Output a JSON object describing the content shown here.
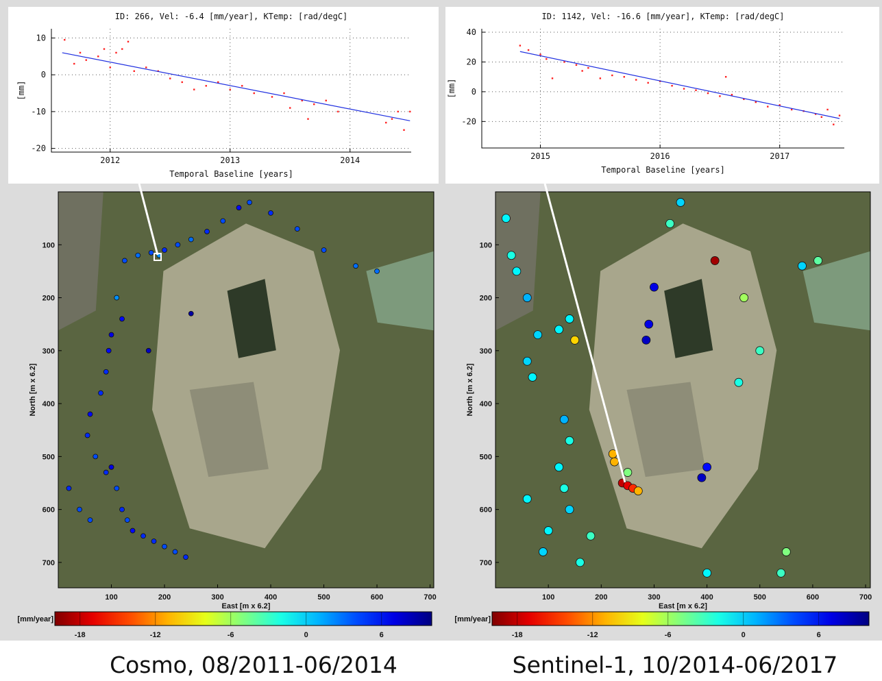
{
  "chart_data": [
    {
      "type": "scatter",
      "title": "ID: 266, Vel: -6.4 [mm/year], KTemp:  [rad/degC]",
      "xlabel": "Temporal Baseline [years]",
      "ylabel": "[mm]",
      "xlim": [
        2011.51,
        2014.51
      ],
      "ylim": [
        -21,
        12.5
      ],
      "xticks": [
        2012,
        2013,
        2014
      ],
      "yticks": [
        -20,
        -10,
        0,
        10
      ],
      "grid": true,
      "color": "#ff2020",
      "x": [
        2011.62,
        2011.7,
        2011.75,
        2011.8,
        2011.9,
        2011.95,
        2012.0,
        2012.05,
        2012.1,
        2012.15,
        2012.2,
        2012.3,
        2012.4,
        2012.5,
        2012.6,
        2012.7,
        2012.8,
        2012.9,
        2013.0,
        2013.1,
        2013.2,
        2013.35,
        2013.45,
        2013.5,
        2013.6,
        2013.65,
        2013.7,
        2013.8,
        2013.9,
        2014.3,
        2014.35,
        2014.4,
        2014.45,
        2014.5
      ],
      "values": [
        9.5,
        3,
        6,
        4,
        5,
        7,
        2,
        6,
        7,
        9,
        1,
        2,
        1,
        -1,
        -2,
        -4,
        -3,
        -2,
        -4,
        -3,
        -5,
        -6,
        -5,
        -9,
        -7,
        -12,
        -8,
        -7,
        -10,
        -13,
        -12,
        -10,
        -15,
        -10
      ],
      "fit": {
        "color": "#1f2fe0",
        "x": [
          2011.6,
          2014.5
        ],
        "values": [
          6,
          -12.5
        ]
      }
    },
    {
      "type": "scatter",
      "title": "ID: 1142, Vel: -16.6 [mm/year], KTemp:  [rad/degC]",
      "xlabel": "Temporal Baseline [years]",
      "ylabel": "[mm]",
      "xlim": [
        2014.51,
        2017.54
      ],
      "ylim": [
        -37.8,
        42.3
      ],
      "xticks": [
        2015,
        2016,
        2017
      ],
      "yticks": [
        -20,
        0,
        20,
        40
      ],
      "grid": true,
      "color": "#ff2020",
      "x": [
        2014.83,
        2014.9,
        2015.0,
        2015.05,
        2015.1,
        2015.2,
        2015.3,
        2015.35,
        2015.4,
        2015.5,
        2015.6,
        2015.7,
        2015.8,
        2015.9,
        2016.0,
        2016.1,
        2016.2,
        2016.3,
        2016.4,
        2016.5,
        2016.55,
        2016.6,
        2016.7,
        2016.8,
        2016.9,
        2017.0,
        2017.1,
        2017.2,
        2017.3,
        2017.35,
        2017.4,
        2017.45,
        2017.5
      ],
      "values": [
        31,
        28,
        25,
        22,
        9,
        20,
        18,
        14,
        16,
        9,
        11,
        10,
        8,
        6,
        7,
        4,
        2,
        1,
        -1,
        -3,
        10,
        -2,
        -5,
        -7,
        -10,
        -9,
        -12,
        -13,
        -15,
        -17,
        -12,
        -22,
        -16
      ],
      "fit": {
        "color": "#1f2fe0",
        "x": [
          2014.83,
          2017.5
        ],
        "values": [
          27,
          -18
        ]
      }
    },
    {
      "type": "map",
      "caption": "Cosmo, 08/2011-06/2014",
      "xlabel": "East [m x 6.2]",
      "ylabel": "North [m x 6.2]",
      "xlim": [
        0,
        707
      ],
      "ylim": [
        0,
        748
      ],
      "xticks": [
        100,
        200,
        300,
        400,
        500,
        600,
        700
      ],
      "yticks": [
        100,
        200,
        300,
        400,
        500,
        600,
        700
      ],
      "colorbar": {
        "label": "[mm/year]",
        "lim": [
          -20,
          10
        ],
        "ticks": [
          -18,
          -12,
          -6,
          0,
          6
        ]
      },
      "x": [
        125,
        150,
        175,
        200,
        225,
        250,
        280,
        310,
        340,
        360,
        400,
        450,
        500,
        560,
        600,
        110,
        120,
        100,
        95,
        90,
        80,
        60,
        55,
        70,
        90,
        110,
        120,
        130,
        140,
        160,
        180,
        200,
        220,
        240,
        20,
        40,
        60,
        100,
        170,
        190,
        250
      ],
      "y": [
        130,
        120,
        115,
        110,
        100,
        90,
        75,
        55,
        30,
        20,
        40,
        70,
        110,
        140,
        150,
        200,
        240,
        270,
        300,
        340,
        380,
        420,
        460,
        500,
        530,
        560,
        600,
        620,
        640,
        650,
        660,
        670,
        680,
        690,
        560,
        600,
        620,
        520,
        300,
        120,
        230
      ],
      "values": [
        4,
        3,
        4,
        5,
        4,
        3,
        5,
        4,
        6,
        4,
        5,
        4,
        4,
        3,
        3,
        2,
        6,
        7,
        6,
        5,
        5,
        6,
        5,
        4,
        5,
        4,
        5,
        4,
        6,
        5,
        5,
        4,
        4,
        5,
        5,
        4,
        4,
        7,
        8,
        2,
        9
      ]
    },
    {
      "type": "map",
      "caption": "Sentinel-1, 10/2014-06/2017",
      "xlabel": "East [m x 6.2]",
      "ylabel": "North [m x 6.2]",
      "xlim": [
        0,
        709
      ],
      "ylim": [
        0,
        748
      ],
      "xticks": [
        100,
        200,
        300,
        400,
        500,
        600,
        700
      ],
      "yticks": [
        100,
        200,
        300,
        400,
        500,
        600,
        700
      ],
      "colorbar": {
        "label": "[mm/year]",
        "lim": [
          -20,
          10
        ],
        "ticks": [
          -18,
          -12,
          -6,
          0,
          6
        ]
      },
      "x": [
        20,
        30,
        40,
        60,
        80,
        120,
        140,
        150,
        60,
        70,
        130,
        140,
        120,
        130,
        140,
        100,
        90,
        240,
        250,
        260,
        270,
        222,
        225,
        415,
        300,
        290,
        285,
        400,
        390,
        580,
        610,
        470,
        500,
        460,
        330,
        350,
        250,
        60,
        160,
        180,
        550,
        540,
        400
      ],
      "y": [
        50,
        120,
        150,
        200,
        270,
        260,
        240,
        280,
        320,
        350,
        430,
        470,
        520,
        560,
        600,
        640,
        680,
        550,
        555,
        560,
        565,
        495,
        510,
        130,
        180,
        250,
        280,
        520,
        540,
        140,
        130,
        200,
        300,
        360,
        60,
        20,
        530,
        580,
        700,
        650,
        680,
        720,
        720
      ],
      "values": [
        -1,
        -2,
        -1,
        1,
        0,
        -1,
        -1,
        -10,
        0,
        -1,
        1,
        -2,
        -1,
        -2,
        0,
        -1,
        0,
        -18,
        -17,
        -15,
        -11,
        -11,
        -11,
        -19,
        7,
        7,
        8,
        6,
        8,
        0,
        -4,
        -6,
        -3,
        -2,
        -3,
        0,
        -5,
        -1,
        -2,
        -3,
        -5,
        -3,
        -1
      ]
    }
  ]
}
